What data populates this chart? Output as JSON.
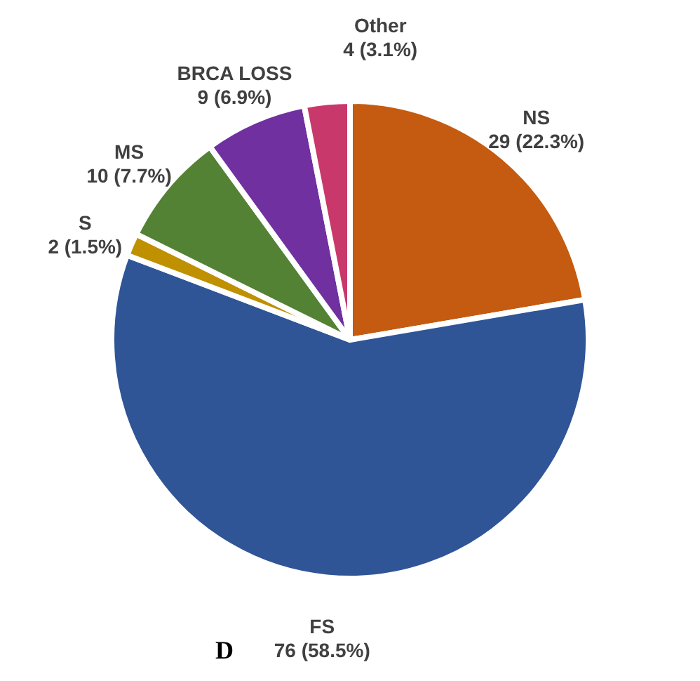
{
  "chart_data": {
    "type": "pie",
    "categories": [
      "NS",
      "FS",
      "S",
      "MS",
      "BRCA LOSS",
      "Other"
    ],
    "values": [
      29,
      76,
      2,
      10,
      9,
      4
    ],
    "value_labels": [
      "29 (22.3%)",
      "76 (58.5%)",
      "2 (1.5%)",
      "10 (7.7%)",
      "9 (6.9%)",
      "4 (3.1%)"
    ],
    "colors": [
      "#c55a11",
      "#2f5597",
      "#bf9000",
      "#548235",
      "#7030a0",
      "#c9386b"
    ],
    "annotations": [
      "D"
    ]
  }
}
